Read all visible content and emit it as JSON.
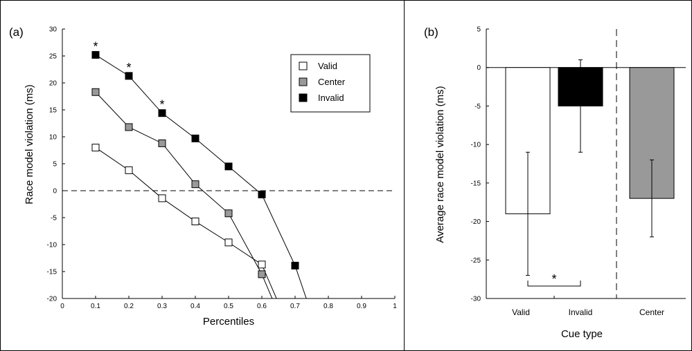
{
  "chart_data": [
    {
      "panel": "(a)",
      "type": "line",
      "xlabel": "Percentiles",
      "ylabel": "Race model violation (ms)",
      "xlim": [
        0,
        1
      ],
      "ylim": [
        -20,
        30
      ],
      "xticks": [
        "0",
        "0.1",
        "0.2",
        "0.3",
        "0.4",
        "0.5",
        "0.6",
        "0.7",
        "0.8",
        "0.9",
        "1"
      ],
      "yticks": [
        "30",
        "25",
        "20",
        "15",
        "10",
        "5",
        "0",
        "-5",
        "-10",
        "-15",
        "-20"
      ],
      "reference_line": 0,
      "legend_position": "top-right",
      "significance_marks": [
        {
          "x": 0.1,
          "label": "*"
        },
        {
          "x": 0.2,
          "label": "*"
        },
        {
          "x": 0.3,
          "label": "*"
        }
      ],
      "series": [
        {
          "name": "Valid",
          "color": "#ffffff",
          "x": [
            0.1,
            0.2,
            0.3,
            0.4,
            0.5,
            0.6,
            0.7
          ],
          "y": [
            8,
            3.8,
            -1.4,
            -5.7,
            -9.6,
            -13.7,
            -28
          ]
        },
        {
          "name": "Center",
          "color": "#999999",
          "x": [
            0.1,
            0.2,
            0.3,
            0.4,
            0.5,
            0.6,
            0.7
          ],
          "y": [
            18.3,
            11.8,
            8.8,
            1.2,
            -4.2,
            -15.5,
            -30
          ]
        },
        {
          "name": "Invalid",
          "color": "#000000",
          "x": [
            0.1,
            0.2,
            0.3,
            0.4,
            0.5,
            0.6,
            0.7,
            0.8
          ],
          "y": [
            25.2,
            21.3,
            14.4,
            9.7,
            4.5,
            -0.7,
            -13.9,
            -32
          ]
        }
      ]
    },
    {
      "panel": "(b)",
      "type": "bar",
      "xlabel": "Cue type",
      "ylabel": "Average race model violation (ms)",
      "ylim": [
        -30,
        5
      ],
      "yticks": [
        "5",
        "0",
        "-5",
        "-10",
        "-15",
        "-20",
        "-25",
        "-30"
      ],
      "categories": [
        "Valid",
        "Invalid",
        "Center"
      ],
      "values": [
        -19,
        -5,
        -17
      ],
      "error": [
        8,
        6,
        5
      ],
      "colors": [
        "#ffffff",
        "#000000",
        "#999999"
      ],
      "significance": {
        "between": [
          "Valid",
          "Invalid"
        ],
        "label": "*"
      }
    }
  ]
}
